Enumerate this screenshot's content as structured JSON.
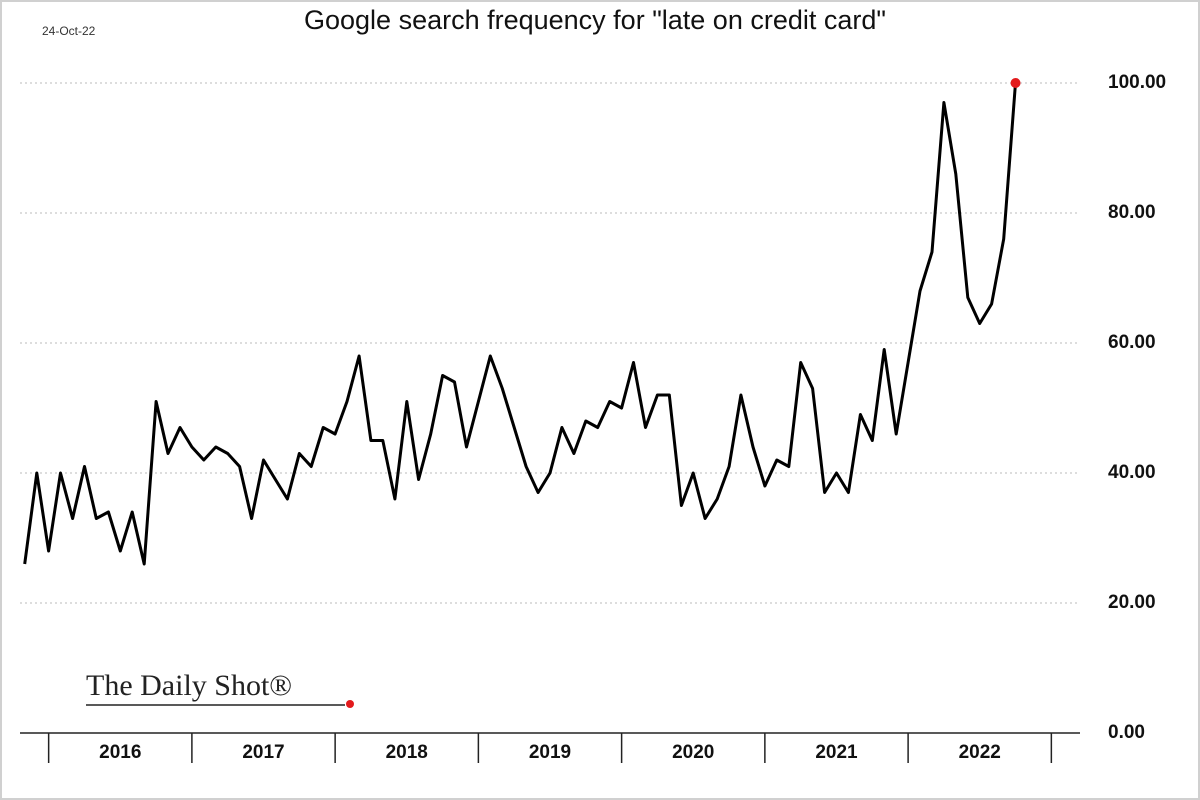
{
  "chart_data": {
    "type": "line",
    "title": "Google search frequency for \"late on credit card\"",
    "date_label": "24-Oct-22",
    "source": "The Daily Shot®",
    "x": [
      2015.833,
      2015.917,
      2016,
      2016.083,
      2016.167,
      2016.25,
      2016.333,
      2016.417,
      2016.5,
      2016.583,
      2016.667,
      2016.75,
      2016.833,
      2016.917,
      2017,
      2017.083,
      2017.167,
      2017.25,
      2017.333,
      2017.417,
      2017.5,
      2017.583,
      2017.667,
      2017.75,
      2017.833,
      2017.917,
      2018,
      2018.083,
      2018.167,
      2018.25,
      2018.333,
      2018.417,
      2018.5,
      2018.583,
      2018.667,
      2018.75,
      2018.833,
      2018.917,
      2019,
      2019.083,
      2019.167,
      2019.25,
      2019.333,
      2019.417,
      2019.5,
      2019.583,
      2019.667,
      2019.75,
      2019.833,
      2019.917,
      2020,
      2020.083,
      2020.167,
      2020.25,
      2020.333,
      2020.417,
      2020.5,
      2020.583,
      2020.667,
      2020.75,
      2020.833,
      2020.917,
      2021,
      2021.083,
      2021.167,
      2021.25,
      2021.333,
      2021.417,
      2021.5,
      2021.583,
      2021.667,
      2021.75,
      2021.833,
      2021.917,
      2022,
      2022.083,
      2022.167,
      2022.25,
      2022.333,
      2022.417,
      2022.5,
      2022.583,
      2022.667,
      2022.75
    ],
    "series": [
      {
        "name": "late on credit card",
        "color": "#000000",
        "values": [
          26,
          40,
          28,
          40,
          33,
          41,
          33,
          34,
          28,
          34,
          26,
          51,
          43,
          47,
          44,
          42,
          44,
          43,
          41,
          33,
          42,
          39,
          36,
          43,
          41,
          47,
          46,
          51,
          58,
          45,
          45,
          36,
          51,
          39,
          46,
          55,
          54,
          44,
          51,
          58,
          53,
          47,
          41,
          37,
          40,
          47,
          43,
          48,
          47,
          51,
          50,
          57,
          47,
          52,
          52,
          35,
          40,
          33,
          36,
          41,
          52,
          44,
          38,
          42,
          41,
          57,
          53,
          37,
          40,
          37,
          49,
          45,
          59,
          46,
          57,
          68,
          74,
          97,
          86,
          67,
          63,
          66,
          76,
          100
        ]
      }
    ],
    "last_point_color": "#e31a1c",
    "xlim": [
      2015.8,
      2023.2
    ],
    "xticks": [
      2016,
      2017,
      2018,
      2019,
      2020,
      2021,
      2022,
      2023
    ],
    "year_labels": [
      "2016",
      "2017",
      "2018",
      "2019",
      "2020",
      "2021",
      "2022"
    ],
    "ylim": [
      0,
      100
    ],
    "yticks": [
      {
        "value": 0,
        "label": "0.00"
      },
      {
        "value": 20,
        "label": "20.00"
      },
      {
        "value": 40,
        "label": "40.00"
      },
      {
        "value": 60,
        "label": "60.00"
      },
      {
        "value": 80,
        "label": "80.00"
      },
      {
        "value": 100,
        "label": "100.00"
      }
    ],
    "grid": true
  }
}
